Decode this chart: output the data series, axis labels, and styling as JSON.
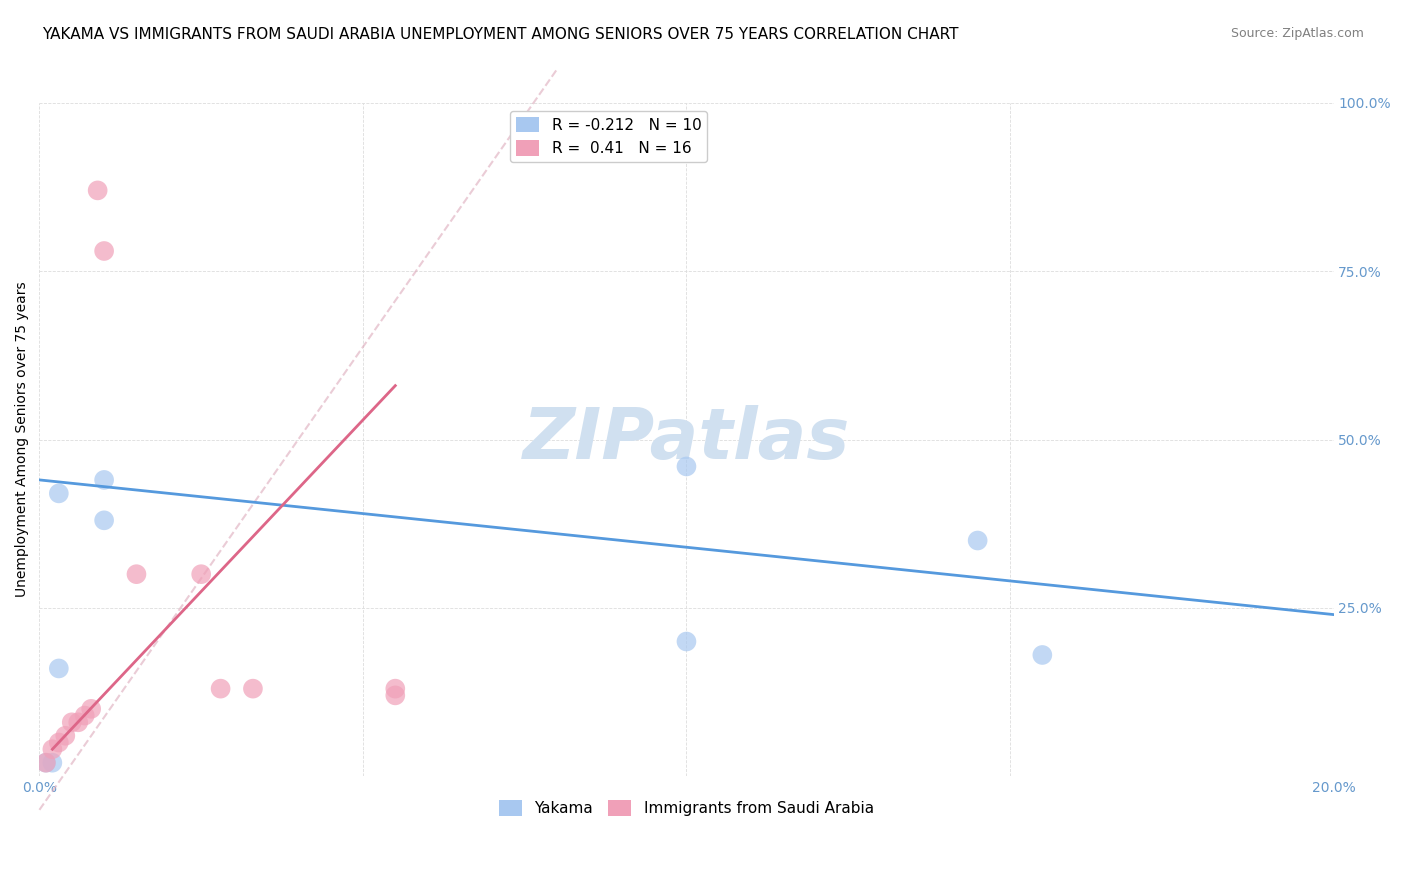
{
  "title": "YAKAMA VS IMMIGRANTS FROM SAUDI ARABIA UNEMPLOYMENT AMONG SENIORS OVER 75 YEARS CORRELATION CHART",
  "source": "Source: ZipAtlas.com",
  "ylabel": "Unemployment Among Seniors over 75 years",
  "watermark": "ZIPatlas",
  "xlim": [
    0.0,
    0.2
  ],
  "ylim": [
    0.0,
    1.0
  ],
  "blue_R": -0.212,
  "blue_N": 10,
  "pink_R": 0.41,
  "pink_N": 16,
  "blue_points_x": [
    0.001,
    0.002,
    0.003,
    0.003,
    0.01,
    0.01,
    0.1,
    0.1,
    0.145,
    0.155
  ],
  "blue_points_y": [
    0.02,
    0.02,
    0.16,
    0.42,
    0.44,
    0.38,
    0.46,
    0.2,
    0.35,
    0.18
  ],
  "pink_points_x": [
    0.001,
    0.002,
    0.003,
    0.004,
    0.005,
    0.006,
    0.007,
    0.008,
    0.009,
    0.015,
    0.025,
    0.028,
    0.033,
    0.055,
    0.055,
    0.01
  ],
  "pink_points_y": [
    0.02,
    0.04,
    0.05,
    0.06,
    0.08,
    0.08,
    0.09,
    0.1,
    0.87,
    0.3,
    0.3,
    0.13,
    0.13,
    0.12,
    0.13,
    0.78
  ],
  "blue_line_x": [
    0.0,
    0.2
  ],
  "blue_line_y": [
    0.44,
    0.24
  ],
  "pink_line_x": [
    0.002,
    0.055
  ],
  "pink_line_y": [
    0.04,
    0.58
  ],
  "blue_color": "#a8c8f0",
  "pink_color": "#f0a0b8",
  "blue_line_color": "#5599dd",
  "pink_line_color": "#dd6688",
  "pink_dash_color": "#ddaabb",
  "title_fontsize": 11,
  "source_fontsize": 9,
  "legend_fontsize": 11,
  "axis_label_fontsize": 10,
  "tick_fontsize": 10,
  "watermark_color": "#d0e0f0",
  "watermark_fontsize": 52,
  "grid_color": "#dddddd",
  "background_color": "#ffffff"
}
